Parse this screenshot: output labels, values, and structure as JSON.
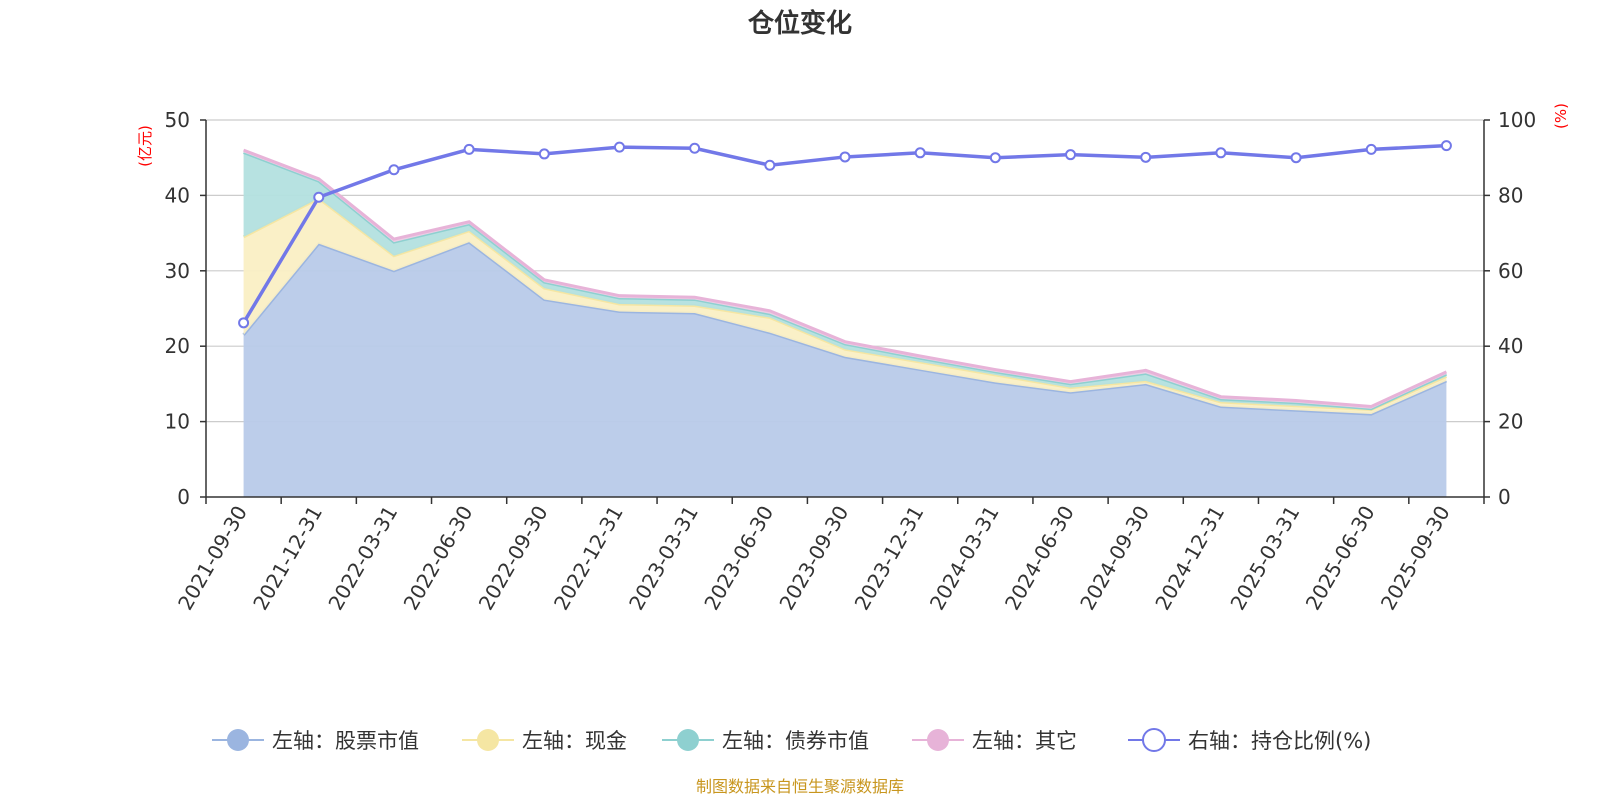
{
  "chart_data": {
    "type": "area",
    "title": "仓位变化",
    "categories": [
      "2021-09-30",
      "2021-12-31",
      "2022-03-31",
      "2022-06-30",
      "2022-09-30",
      "2022-12-31",
      "2023-03-31",
      "2023-06-30",
      "2023-09-30",
      "2023-12-31",
      "2024-03-31",
      "2024-06-30",
      "2024-09-30",
      "2024-12-31",
      "2025-03-31",
      "2025-06-30",
      "2025-09-30"
    ],
    "left_axis": {
      "unit_label": "(亿元)",
      "ylim": [
        0,
        50
      ],
      "ticks": [
        0,
        10,
        20,
        30,
        40,
        50
      ]
    },
    "right_axis": {
      "unit_label": "(%)",
      "ylim": [
        0,
        100
      ],
      "ticks": [
        0,
        20,
        40,
        60,
        80,
        100
      ]
    },
    "stacked_series": [
      {
        "name": "左轴：股票市值",
        "color": "#9bb5e0",
        "fill": "#b8cae9",
        "values": [
          21.5,
          33.6,
          30.0,
          33.8,
          26.2,
          24.6,
          24.4,
          21.8,
          18.6,
          16.9,
          15.2,
          13.9,
          15.0,
          12.0,
          11.5,
          11.0,
          15.4
        ]
      },
      {
        "name": "左轴：现金",
        "color": "#f5e6a3",
        "fill": "#faefc4",
        "values": [
          13.0,
          6.0,
          2.0,
          1.5,
          1.5,
          1.0,
          1.0,
          2.0,
          1.0,
          1.0,
          1.0,
          0.6,
          0.4,
          0.6,
          0.6,
          0.6,
          0.6
        ]
      },
      {
        "name": "左轴：债券市值",
        "color": "#8ed0d0",
        "fill": "#b3e0df",
        "values": [
          11.2,
          2.3,
          1.8,
          0.9,
          0.8,
          0.8,
          0.8,
          0.5,
          0.7,
          0.5,
          0.4,
          0.5,
          1.0,
          0.4,
          0.4,
          0.1,
          0.3
        ]
      },
      {
        "name": "左轴：其它",
        "color": "#e7b3d8",
        "fill": "#f0cde6",
        "values": [
          0.3,
          0.3,
          0.4,
          0.3,
          0.3,
          0.3,
          0.3,
          0.4,
          0.3,
          0.3,
          0.3,
          0.3,
          0.4,
          0.3,
          0.3,
          0.3,
          0.3
        ]
      }
    ],
    "line_series": {
      "name": "右轴：持仓比例(%)",
      "axis": "right",
      "color": "#7278e8",
      "values": [
        46.2,
        79.5,
        86.8,
        92.2,
        91.0,
        92.8,
        92.5,
        88.0,
        90.2,
        91.3,
        90.0,
        90.8,
        90.1,
        91.3,
        90.0,
        92.2,
        93.2
      ]
    },
    "legend_position": "bottom-center",
    "grid": true
  },
  "footer": {
    "source": "制图数据来自恒生聚源数据库"
  }
}
